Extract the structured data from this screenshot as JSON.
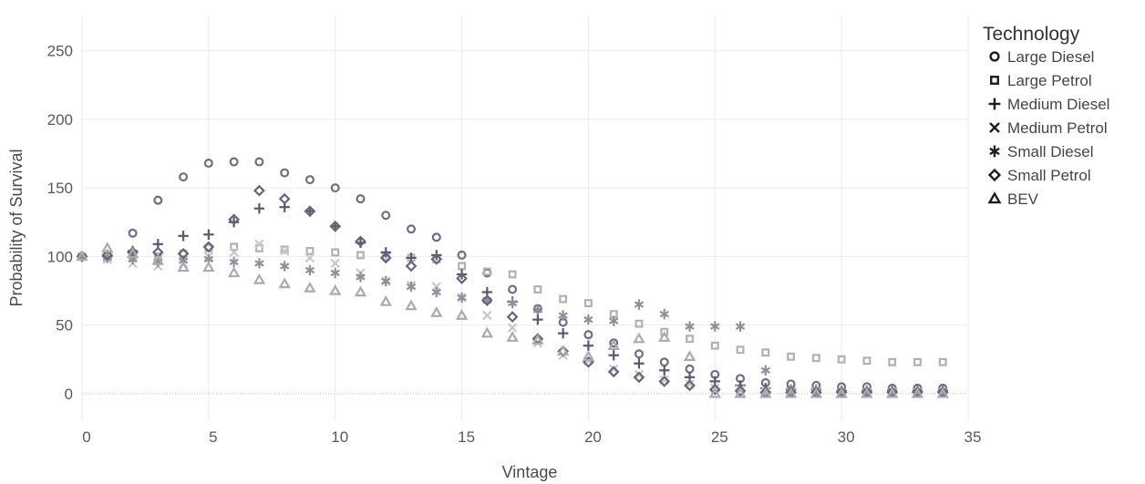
{
  "chart_data": {
    "type": "scatter",
    "title": "",
    "xlabel": "Vintage",
    "ylabel": "Probability of Survival",
    "xlim": [
      0,
      35
    ],
    "ylim": [
      -20,
      275
    ],
    "xticks": [
      0,
      5,
      10,
      15,
      20,
      25,
      30,
      35
    ],
    "yticks": [
      0,
      50,
      100,
      150,
      200,
      250
    ],
    "grid": true,
    "zero_reference_line": 0,
    "legend": {
      "title": "Technology",
      "placement": "right-top"
    },
    "series": [
      {
        "name": "Large Diesel",
        "marker": "circle",
        "color": "#6b7080",
        "x": [
          0,
          1,
          2,
          3,
          4,
          5,
          6,
          7,
          8,
          9,
          10,
          11,
          12,
          13,
          14,
          15,
          16,
          17,
          18,
          19,
          20,
          21,
          22,
          23,
          24,
          25,
          26,
          27,
          28,
          29,
          30,
          31,
          32,
          33,
          34
        ],
        "y": [
          100,
          100,
          117,
          141,
          158,
          168,
          169,
          169,
          161,
          156,
          150,
          142,
          130,
          120,
          114,
          101,
          88,
          76,
          62,
          52,
          43,
          37,
          29,
          23,
          18,
          14,
          11,
          8,
          7,
          6,
          5,
          5,
          4,
          4,
          4
        ]
      },
      {
        "name": "Large Petrol",
        "marker": "square",
        "color": "#b0b0b6",
        "x": [
          0,
          1,
          2,
          3,
          4,
          5,
          6,
          7,
          8,
          9,
          10,
          11,
          12,
          13,
          14,
          15,
          16,
          17,
          18,
          19,
          20,
          21,
          22,
          23,
          24,
          25,
          26,
          27,
          28,
          29,
          30,
          31,
          32,
          33,
          34
        ],
        "y": [
          100,
          100,
          100,
          100,
          102,
          106,
          107,
          106,
          105,
          104,
          103,
          101,
          100,
          99,
          98,
          93,
          89,
          87,
          76,
          69,
          66,
          58,
          51,
          45,
          40,
          35,
          32,
          30,
          27,
          26,
          25,
          24,
          23,
          23,
          23
        ]
      },
      {
        "name": "Medium Diesel",
        "marker": "plus",
        "color": "#555c6b",
        "x": [
          0,
          1,
          2,
          3,
          4,
          5,
          6,
          7,
          8,
          9,
          10,
          11,
          12,
          13,
          14,
          15,
          16,
          17,
          18,
          19,
          20,
          21,
          22,
          23,
          24,
          25,
          26,
          27,
          28,
          29,
          30,
          31,
          32,
          33,
          34
        ],
        "y": [
          100,
          100,
          104,
          109,
          115,
          116,
          125,
          135,
          136,
          133,
          122,
          110,
          103,
          99,
          101,
          87,
          74,
          67,
          54,
          44,
          35,
          28,
          22,
          17,
          12,
          9,
          6,
          4,
          3,
          3,
          2,
          2,
          2,
          2,
          2
        ]
      },
      {
        "name": "Medium Petrol",
        "marker": "x",
        "color": "#c8c8cc",
        "x": [
          0,
          1,
          2,
          3,
          4,
          5,
          6,
          7,
          8,
          9,
          10,
          11,
          12,
          13,
          14,
          15,
          16,
          17,
          18,
          19,
          20,
          21,
          22,
          23,
          24,
          25,
          26,
          27,
          28,
          29,
          30,
          31,
          32,
          33,
          34
        ],
        "y": [
          100,
          98,
          95,
          93,
          95,
          100,
          103,
          109,
          104,
          99,
          95,
          88,
          82,
          79,
          78,
          70,
          57,
          48,
          37,
          28,
          24,
          18,
          14,
          10,
          7,
          4,
          3,
          2,
          1,
          1,
          1,
          1,
          1,
          1,
          1
        ]
      },
      {
        "name": "Small Diesel",
        "marker": "asterisk",
        "color": "#8d919c",
        "x": [
          0,
          1,
          2,
          3,
          4,
          5,
          6,
          7,
          8,
          9,
          10,
          11,
          12,
          13,
          14,
          15,
          16,
          17,
          18,
          19,
          20,
          21,
          22,
          23,
          24,
          25,
          26,
          27,
          28,
          29,
          30,
          31,
          32,
          33,
          34
        ],
        "y": [
          100,
          99,
          98,
          96,
          97,
          98,
          96,
          95,
          93,
          90,
          88,
          85,
          82,
          78,
          74,
          70,
          68,
          66,
          61,
          57,
          54,
          53,
          65,
          58,
          49,
          49,
          49,
          17,
          3,
          3,
          2,
          2,
          2,
          2,
          2
        ]
      },
      {
        "name": "Small Petrol",
        "marker": "diamond",
        "color": "#636876",
        "x": [
          0,
          1,
          2,
          3,
          4,
          5,
          6,
          7,
          8,
          9,
          10,
          11,
          12,
          13,
          14,
          15,
          16,
          17,
          18,
          19,
          20,
          21,
          22,
          23,
          24,
          25,
          26,
          27,
          28,
          29,
          30,
          31,
          32,
          33,
          34
        ],
        "y": [
          100,
          101,
          103,
          103,
          102,
          107,
          127,
          148,
          142,
          133,
          122,
          111,
          99,
          93,
          98,
          84,
          68,
          56,
          40,
          31,
          23,
          16,
          12,
          9,
          6,
          3,
          2,
          1,
          1,
          1,
          1,
          1,
          1,
          1,
          1
        ]
      },
      {
        "name": "BEV",
        "marker": "triangle",
        "color": "#aaaaaf",
        "x": [
          0,
          1,
          2,
          3,
          4,
          5,
          6,
          7,
          8,
          9,
          10,
          11,
          12,
          13,
          14,
          15,
          16,
          17,
          18,
          19,
          20,
          21,
          22,
          23,
          24,
          25,
          26,
          27,
          28,
          29,
          30,
          31,
          32,
          33,
          34
        ],
        "y": [
          100,
          106,
          102,
          97,
          92,
          92,
          88,
          83,
          80,
          77,
          75,
          74,
          67,
          64,
          59,
          57,
          44,
          41,
          39,
          31,
          27,
          35,
          40,
          41,
          27,
          0,
          0,
          0,
          0,
          0,
          0,
          0,
          0,
          0,
          0
        ]
      }
    ]
  }
}
